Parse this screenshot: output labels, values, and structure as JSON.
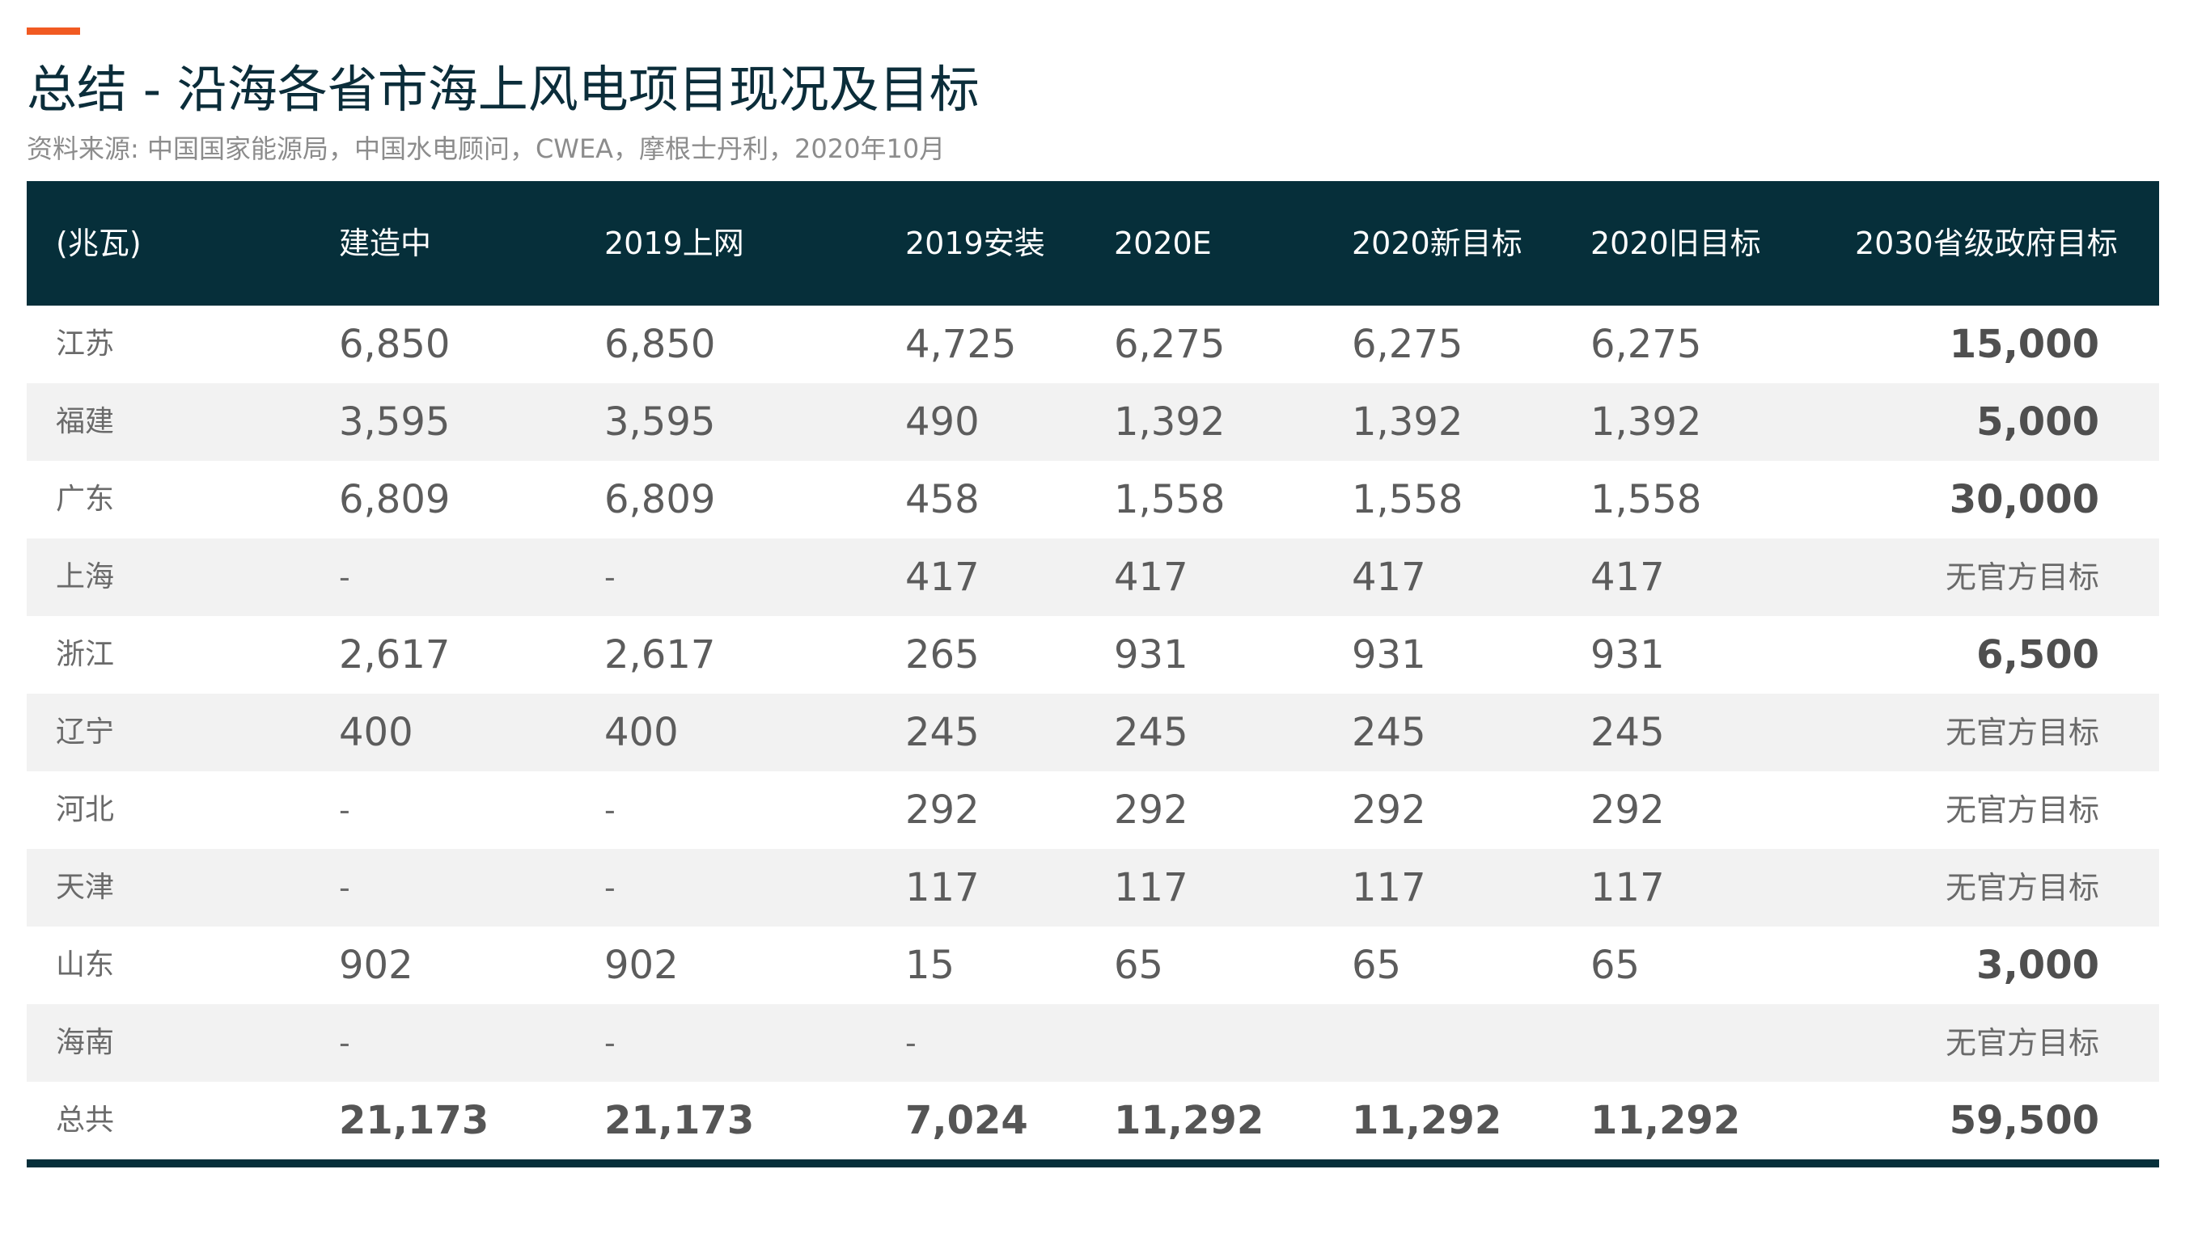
{
  "title": "总结 - 沿海各省市海上风电项目现况及目标",
  "source": "资料来源: 中国国家能源局，中国水电顾问，CWEA，摩根士丹利，2020年10月",
  "colors": {
    "accent": "#f15a22",
    "header_bg": "#062f3a",
    "row_shade": "#f2f2f2"
  },
  "table": {
    "headers": [
      "(兆瓦)",
      "建造中",
      "2019上网",
      "2019安装",
      "2020E",
      "2020新目标",
      "2020旧目标",
      "2030省级政府目标"
    ],
    "rows": [
      {
        "province": "江苏",
        "values": [
          "6,850",
          "6,850",
          "4,725",
          "6,275",
          "6,275",
          "6,275"
        ],
        "target": "15,000"
      },
      {
        "province": "福建",
        "values": [
          "3,595",
          "3,595",
          "490",
          "1,392",
          "1,392",
          "1,392"
        ],
        "target": "5,000"
      },
      {
        "province": "广东",
        "values": [
          "6,809",
          "6,809",
          "458",
          "1,558",
          "1,558",
          "1,558"
        ],
        "target": "30,000"
      },
      {
        "province": "上海",
        "values": [
          "-",
          "-",
          "417",
          "417",
          "417",
          "417"
        ],
        "target": "无官方目标"
      },
      {
        "province": "浙江",
        "values": [
          "2,617",
          "2,617",
          "265",
          "931",
          "931",
          "931"
        ],
        "target": "6,500"
      },
      {
        "province": "辽宁",
        "values": [
          "400",
          "400",
          "245",
          "245",
          "245",
          "245"
        ],
        "target": "无官方目标"
      },
      {
        "province": "河北",
        "values": [
          "-",
          "-",
          "292",
          "292",
          "292",
          "292"
        ],
        "target": "无官方目标"
      },
      {
        "province": "天津",
        "values": [
          "-",
          "-",
          "117",
          "117",
          "117",
          "117"
        ],
        "target": "无官方目标"
      },
      {
        "province": "山东",
        "values": [
          "902",
          "902",
          "15",
          "65",
          "65",
          "65"
        ],
        "target": "3,000"
      },
      {
        "province": "海南",
        "values": [
          "-",
          "-",
          "-",
          "",
          "",
          ""
        ],
        "target": "无官方目标"
      }
    ],
    "total": {
      "label": "总共",
      "values": [
        "21,173",
        "21,173",
        "7,024",
        "11,292",
        "11,292",
        "11,292"
      ],
      "target": "59,500"
    }
  }
}
